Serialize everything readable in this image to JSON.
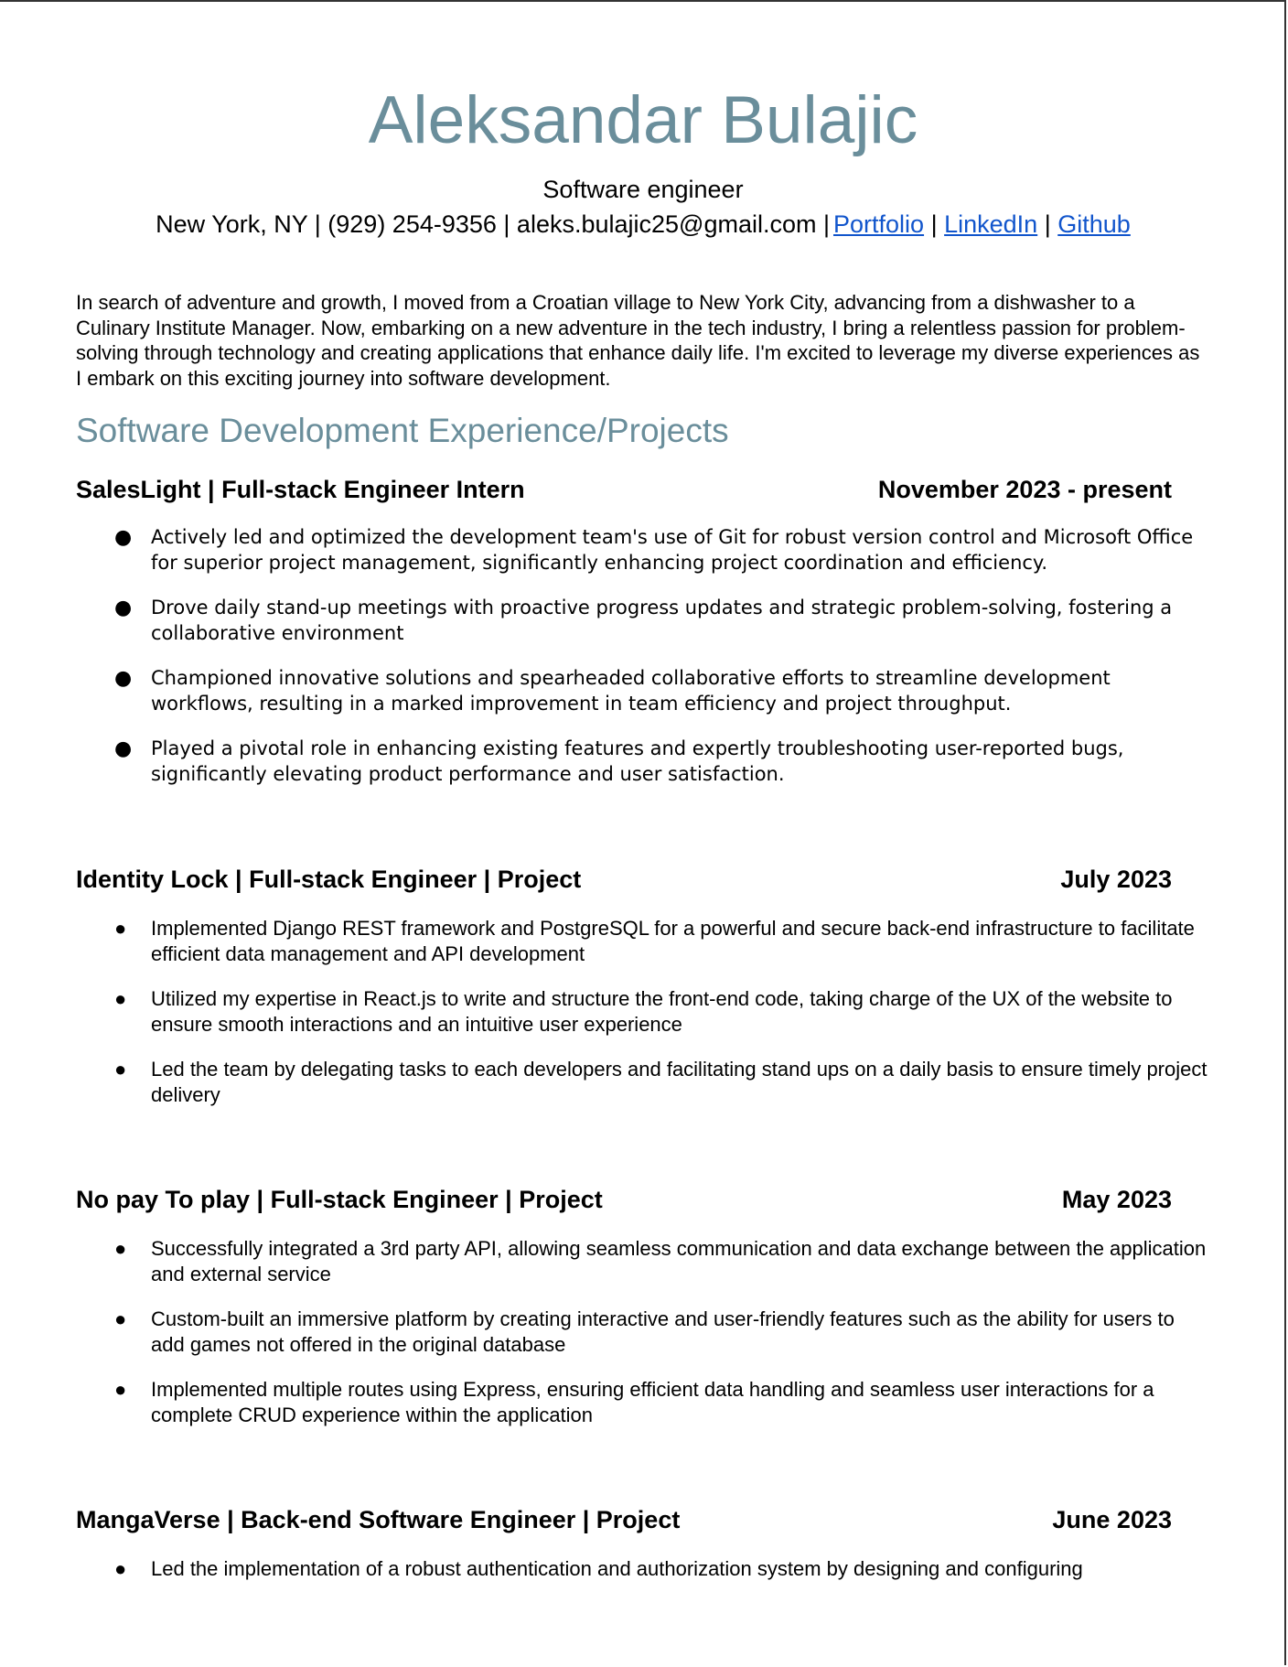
{
  "header": {
    "name": "Aleksandar Bulajic",
    "role": "Software engineer",
    "contact_text": "New York, NY | (929) 254-9356 | aleks.bulajic25@gmail.com |",
    "links": [
      "Portfolio",
      "LinkedIn",
      "Github"
    ],
    "separator": "|"
  },
  "summary": "In search of adventure and growth, I moved from a Croatian village to New York City, advancing from a dishwasher to a Culinary Institute Manager. Now, embarking on a new adventure in the tech industry, I bring a relentless passion for problem-solving through technology and creating applications that enhance daily life. I'm excited to leverage my diverse experiences as I embark on this exciting journey into software development.",
  "section_title": "Software Development Experience/Projects",
  "bullet_char": "●",
  "jobs": [
    {
      "title": "SalesLight | Full-stack Engineer Intern",
      "date": "November 2023 - present",
      "bullets": [
        "Actively led and optimized the development team's use of Git for robust version control and Microsoft Office for superior project management, significantly enhancing project coordination and efficiency.",
        "Drove daily stand-up meetings with proactive progress updates and strategic problem-solving, fostering a collaborative environment",
        "Championed innovative solutions and spearheaded collaborative efforts to streamline development workflows, resulting in a marked improvement in team efficiency and project throughput.",
        "Played a pivotal role in enhancing existing features and expertly troubleshooting user-reported bugs, significantly elevating product performance and user satisfaction."
      ]
    },
    {
      "title": "Identity Lock | Full-stack Engineer | Project",
      "date": "July 2023",
      "bullets": [
        "Implemented Django REST framework and PostgreSQL for a powerful and secure back-end infrastructure to facilitate efficient data management and API development",
        "Utilized my expertise in React.js to write and structure the front-end code, taking charge of the UX of the website to ensure smooth interactions and an intuitive user experience",
        "Led the team by delegating tasks to each developers and facilitating stand ups on a daily basis to ensure timely project delivery"
      ]
    },
    {
      "title": "No pay To play | Full-stack Engineer | Project",
      "date": "May 2023",
      "bullets": [
        "Successfully integrated a 3rd party API, allowing  seamless communication and data exchange between the application and external service",
        "Custom-built an immersive platform by creating interactive and user-friendly features such as the ability for users to add games not offered in the original database",
        "Implemented multiple routes using Express, ensuring efficient data handling and seamless user interactions for a complete CRUD experience within the application"
      ]
    },
    {
      "title": "MangaVerse | Back-end Software Engineer | Project",
      "date": "June 2023",
      "bullets": [
        "Led the implementation of a robust authentication and authorization system by designing and configuring"
      ]
    }
  ]
}
